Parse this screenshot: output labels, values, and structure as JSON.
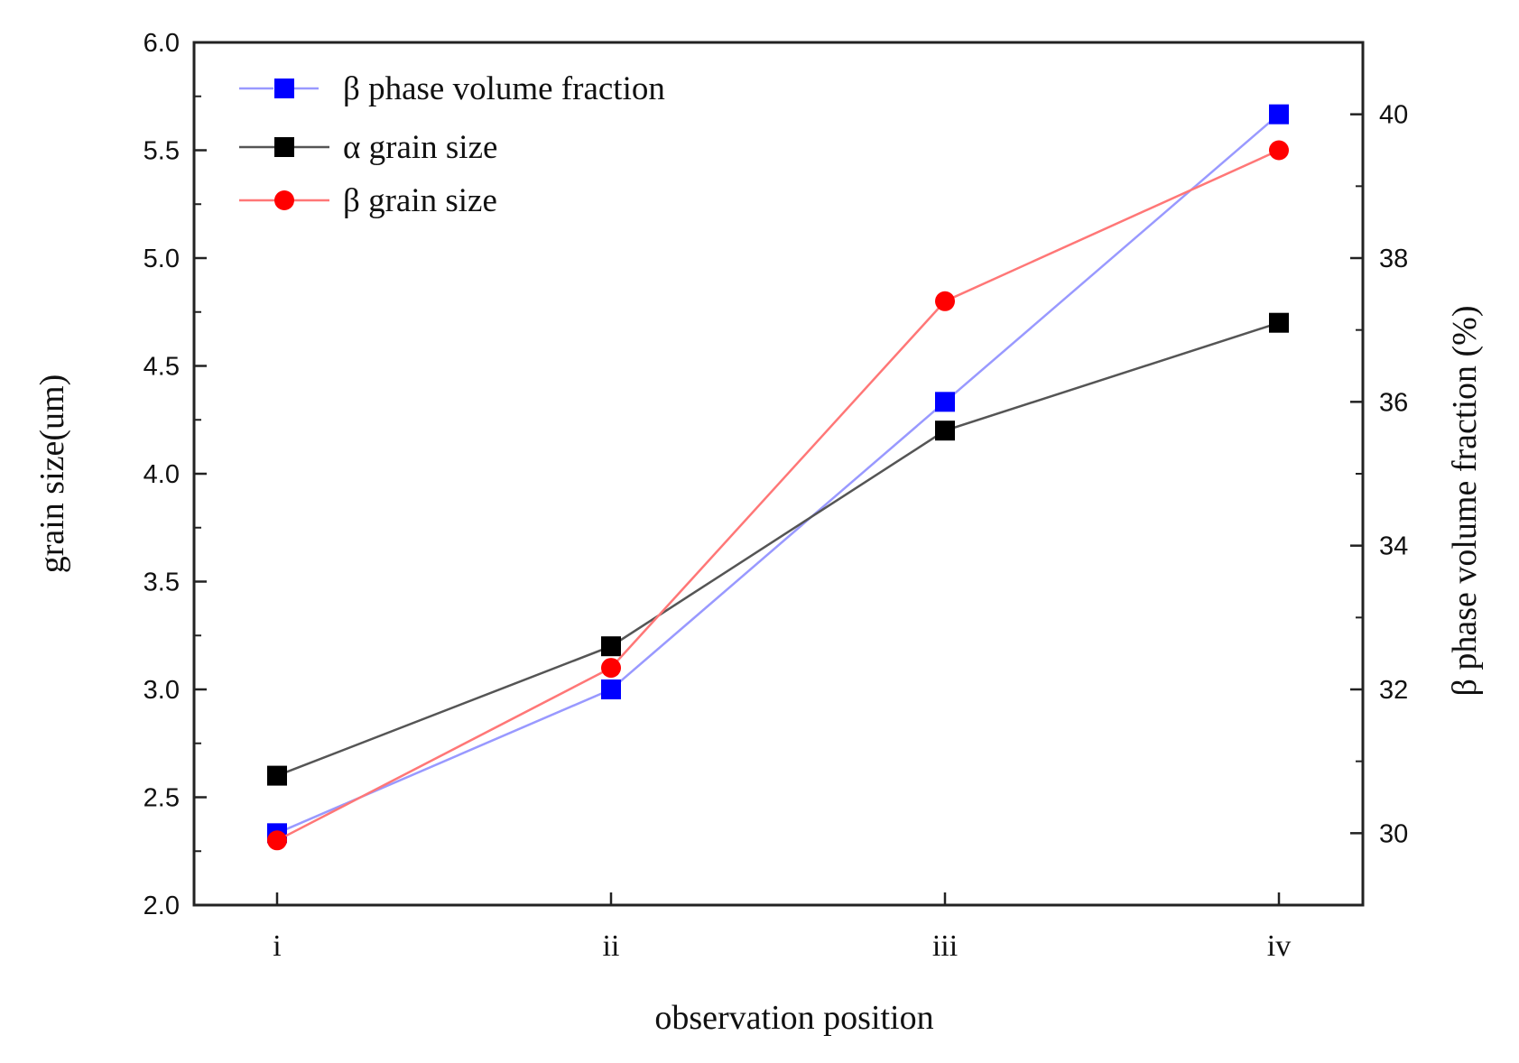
{
  "chart_data": {
    "type": "line",
    "title": "",
    "categories": [
      "i",
      "ii",
      "iii",
      "iv"
    ],
    "xlabel": "observation position",
    "ylabel": "grain size(um)",
    "y2label": "β phase volume fraction (%)",
    "ylim": [
      2.0,
      6.0
    ],
    "y2lim": [
      29,
      41
    ],
    "yticks": [
      "2.0",
      "2.5",
      "3.0",
      "3.5",
      "4.0",
      "4.5",
      "5.0",
      "5.5",
      "6.0"
    ],
    "y2ticks": [
      "30",
      "32",
      "34",
      "36",
      "38",
      "40"
    ],
    "legend_position": "top-left",
    "series": [
      {
        "name": "β phase volume fraction",
        "axis": "right",
        "marker": "square",
        "color": "#0000ff",
        "line_color": "#9999ff",
        "dashed": true,
        "values": [
          30.0,
          32.0,
          36.0,
          40.0
        ]
      },
      {
        "name": "α grain size",
        "axis": "left",
        "marker": "square",
        "color": "#000000",
        "line_color": "#555555",
        "dashed": false,
        "values": [
          2.6,
          3.2,
          4.2,
          4.7
        ]
      },
      {
        "name": "β grain size",
        "axis": "left",
        "marker": "circle",
        "color": "#ff0000",
        "line_color": "#ff7777",
        "dashed": false,
        "values": [
          2.3,
          3.1,
          4.8,
          5.5
        ]
      }
    ]
  }
}
